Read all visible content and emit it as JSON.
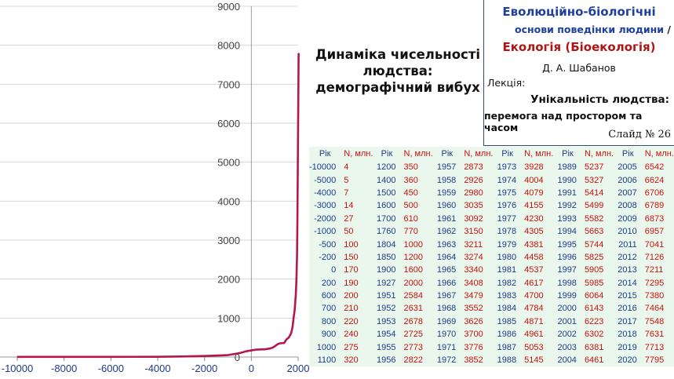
{
  "chart_data": {
    "type": "line",
    "x": [
      -10000,
      -5000,
      -4000,
      -3000,
      -2000,
      -1000,
      -500,
      -200,
      0,
      200,
      600,
      700,
      800,
      900,
      1000,
      1100,
      1200,
      1400,
      1500,
      1600,
      1700,
      1760,
      1804,
      1850,
      1900,
      1927,
      1951,
      1952,
      1953,
      1954,
      1955,
      1956,
      1957,
      1958,
      1959,
      1960,
      1961,
      1962,
      1963,
      1964,
      1965,
      1966,
      1967,
      1968,
      1969,
      1970,
      1971,
      1972,
      1973,
      1974,
      1975,
      1976,
      1977,
      1978,
      1979,
      1980,
      1981,
      1982,
      1983,
      1984,
      1985,
      1986,
      1987,
      1988,
      1989,
      1990,
      1991,
      1992,
      1993,
      1994,
      1995,
      1996,
      1997,
      1998,
      1999,
      2000,
      2001,
      2002,
      2003,
      2004,
      2005,
      2006,
      2007,
      2008,
      2009,
      2010,
      2011,
      2012,
      2013,
      2014,
      2015,
      2016,
      2017,
      2018,
      2019,
      2020
    ],
    "series": [
      {
        "values": [
          4,
          5,
          7,
          14,
          27,
          50,
          100,
          150,
          170,
          190,
          200,
          210,
          220,
          240,
          275,
          320,
          350,
          360,
          450,
          500,
          610,
          770,
          1000,
          1200,
          1600,
          2000,
          2584,
          2631,
          2678,
          2725,
          2773,
          2822,
          2873,
          2926,
          2980,
          3035,
          3092,
          3150,
          3211,
          3274,
          3340,
          3408,
          3479,
          3552,
          3626,
          3700,
          3776,
          3852,
          3928,
          4004,
          4079,
          4155,
          4230,
          4305,
          4381,
          4458,
          4537,
          4617,
          4700,
          4784,
          4871,
          4961,
          5053,
          5145,
          5237,
          5327,
          5414,
          5499,
          5582,
          5663,
          5744,
          5825,
          5905,
          5985,
          6064,
          6143,
          6223,
          6302,
          6381,
          6461,
          6542,
          6624,
          6706,
          6789,
          6873,
          6957,
          7041,
          7126,
          7211,
          7295,
          7380,
          7464,
          7548,
          7631,
          7713,
          7795
        ],
        "color": "#b5174a"
      }
    ],
    "xlim": [
      -10000,
      2000
    ],
    "ylim": [
      0,
      9000
    ],
    "xticks": [
      "-10000",
      "-8000",
      "-6000",
      "-4000",
      "-2000",
      "0",
      "2000"
    ],
    "yticks": [
      "0",
      "1000",
      "2000",
      "3000",
      "4000",
      "5000",
      "6000",
      "7000",
      "8000",
      "9000"
    ],
    "grid": true,
    "legend": "none",
    "title": "",
    "xlabel": "",
    "ylabel": ""
  },
  "slide": {
    "title_line1": "Динаміка чисельності",
    "title_line2": "людства:",
    "title_line3": "демографічний вибух",
    "course_line1": "Еволюційно-біологічні",
    "course_line2": "основи поведінки людини",
    "course_sep": " /",
    "course_line3": "Екологія (Біоекологія)",
    "author": "Д. А. Шабанов",
    "lecture_label": "Лекція:",
    "lecture_line1": "Унікальність людства:",
    "lecture_line2": "перемога над простором та часом",
    "slide_number": "Слайд № 26"
  },
  "table": {
    "header_year": "Рік",
    "header_n": "N, млн.",
    "columns": [
      [
        [
          "-10000",
          "4"
        ],
        [
          "-5000",
          "5"
        ],
        [
          "-4000",
          "7"
        ],
        [
          "-3000",
          "14"
        ],
        [
          "-2000",
          "27"
        ],
        [
          "-1000",
          "50"
        ],
        [
          "-500",
          "100"
        ],
        [
          "-200",
          "150"
        ],
        [
          "0",
          "170"
        ],
        [
          "200",
          "190"
        ],
        [
          "600",
          "200"
        ],
        [
          "700",
          "210"
        ],
        [
          "800",
          "220"
        ],
        [
          "900",
          "240"
        ],
        [
          "1000",
          "275"
        ],
        [
          "1100",
          "320"
        ]
      ],
      [
        [
          "1200",
          "350"
        ],
        [
          "1400",
          "360"
        ],
        [
          "1500",
          "450"
        ],
        [
          "1600",
          "500"
        ],
        [
          "1700",
          "610"
        ],
        [
          "1760",
          "770"
        ],
        [
          "1804",
          "1000"
        ],
        [
          "1850",
          "1200"
        ],
        [
          "1900",
          "1600"
        ],
        [
          "1927",
          "2000"
        ],
        [
          "1951",
          "2584"
        ],
        [
          "1952",
          "2631"
        ],
        [
          "1953",
          "2678"
        ],
        [
          "1954",
          "2725"
        ],
        [
          "1955",
          "2773"
        ],
        [
          "1956",
          "2822"
        ]
      ],
      [
        [
          "1957",
          "2873"
        ],
        [
          "1958",
          "2926"
        ],
        [
          "1959",
          "2980"
        ],
        [
          "1960",
          "3035"
        ],
        [
          "1961",
          "3092"
        ],
        [
          "1962",
          "3150"
        ],
        [
          "1963",
          "3211"
        ],
        [
          "1964",
          "3274"
        ],
        [
          "1965",
          "3340"
        ],
        [
          "1966",
          "3408"
        ],
        [
          "1967",
          "3479"
        ],
        [
          "1968",
          "3552"
        ],
        [
          "1969",
          "3626"
        ],
        [
          "1970",
          "3700"
        ],
        [
          "1971",
          "3776"
        ],
        [
          "1972",
          "3852"
        ]
      ],
      [
        [
          "1973",
          "3928"
        ],
        [
          "1974",
          "4004"
        ],
        [
          "1975",
          "4079"
        ],
        [
          "1976",
          "4155"
        ],
        [
          "1977",
          "4230"
        ],
        [
          "1978",
          "4305"
        ],
        [
          "1979",
          "4381"
        ],
        [
          "1980",
          "4458"
        ],
        [
          "1981",
          "4537"
        ],
        [
          "1982",
          "4617"
        ],
        [
          "1983",
          "4700"
        ],
        [
          "1984",
          "4784"
        ],
        [
          "1985",
          "4871"
        ],
        [
          "1986",
          "4961"
        ],
        [
          "1987",
          "5053"
        ],
        [
          "1988",
          "5145"
        ]
      ],
      [
        [
          "1989",
          "5237"
        ],
        [
          "1990",
          "5327"
        ],
        [
          "1991",
          "5414"
        ],
        [
          "1992",
          "5499"
        ],
        [
          "1993",
          "5582"
        ],
        [
          "1994",
          "5663"
        ],
        [
          "1995",
          "5744"
        ],
        [
          "1996",
          "5825"
        ],
        [
          "1997",
          "5905"
        ],
        [
          "1998",
          "5985"
        ],
        [
          "1999",
          "6064"
        ],
        [
          "2000",
          "6143"
        ],
        [
          "2001",
          "6223"
        ],
        [
          "2002",
          "6302"
        ],
        [
          "2003",
          "6381"
        ],
        [
          "2004",
          "6461"
        ]
      ],
      [
        [
          "2005",
          "6542"
        ],
        [
          "2006",
          "6624"
        ],
        [
          "2007",
          "6706"
        ],
        [
          "2008",
          "6789"
        ],
        [
          "2009",
          "6873"
        ],
        [
          "2010",
          "6957"
        ],
        [
          "2011",
          "7041"
        ],
        [
          "2012",
          "7126"
        ],
        [
          "2013",
          "7211"
        ],
        [
          "2014",
          "7295"
        ],
        [
          "2015",
          "7380"
        ],
        [
          "2016",
          "7464"
        ],
        [
          "2017",
          "7548"
        ],
        [
          "2018",
          "7631"
        ],
        [
          "2019",
          "7713"
        ],
        [
          "2020",
          "7795"
        ]
      ]
    ]
  }
}
